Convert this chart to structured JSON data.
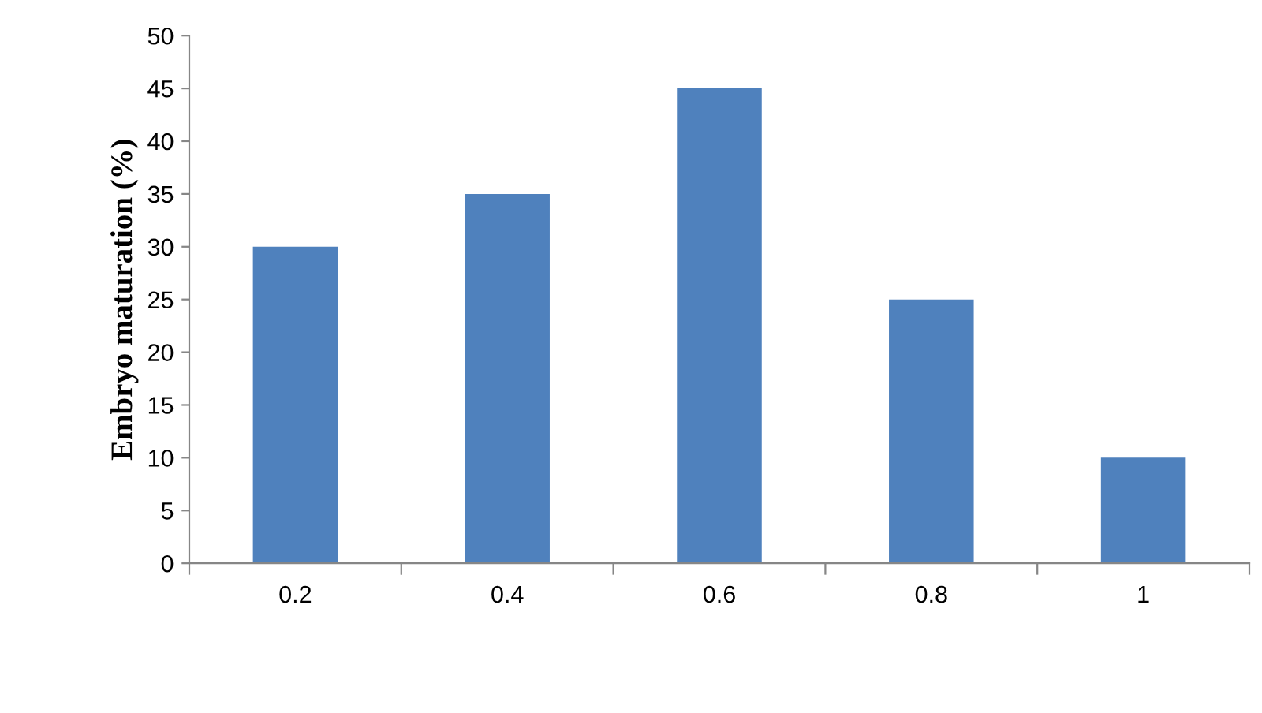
{
  "chart_data": {
    "type": "bar",
    "ylabel": "Embryo maturation (%)",
    "categories": [
      "0.2",
      "0.4",
      "0.6",
      "0.8",
      "1"
    ],
    "values": [
      30,
      35,
      45,
      25,
      10
    ],
    "color": "#4f81bd",
    "ylim": [
      0,
      50
    ],
    "yticks": [
      0,
      5,
      10,
      15,
      20,
      25,
      30,
      35,
      40,
      45,
      50
    ],
    "grid": false
  }
}
